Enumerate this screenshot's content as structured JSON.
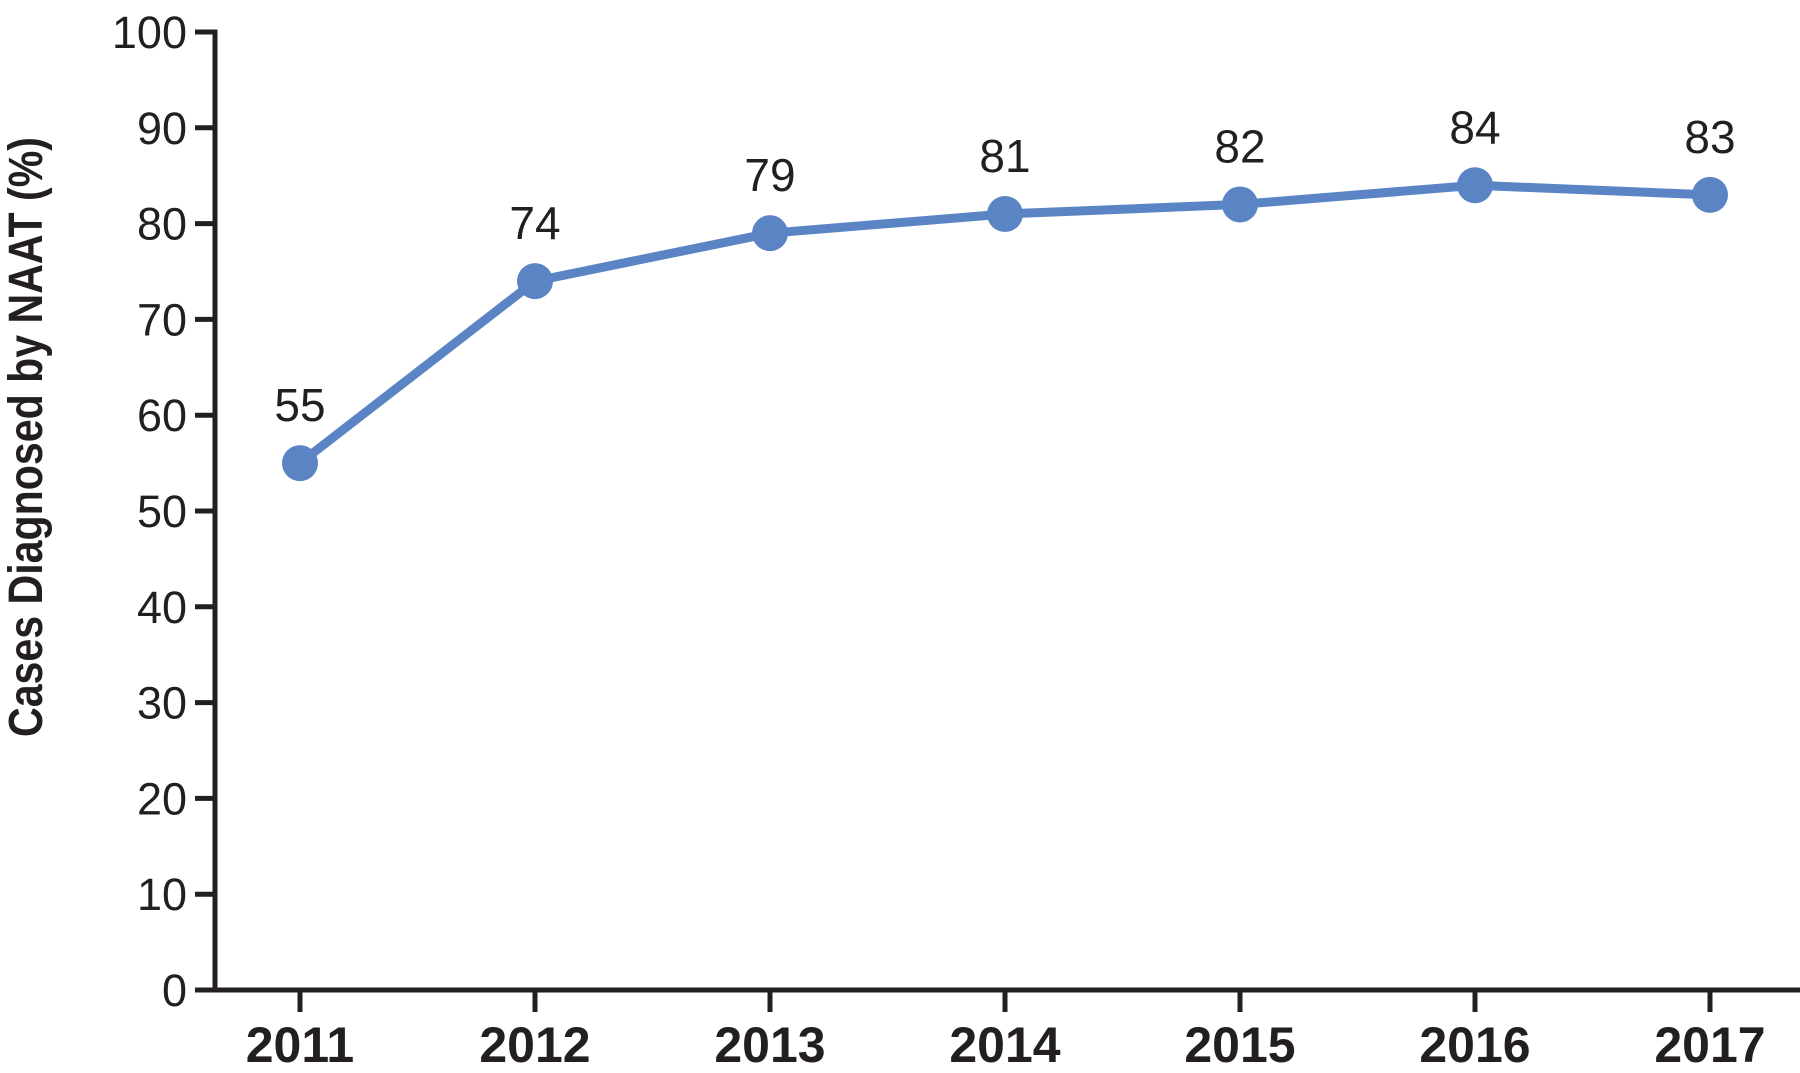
{
  "figure": {
    "background_color": "#ffffff"
  },
  "chart_data": {
    "type": "line",
    "title": "",
    "categories": [
      "2011",
      "2012",
      "2013",
      "2014",
      "2015",
      "2016",
      "2017"
    ],
    "values": [
      55,
      74,
      79,
      81,
      82,
      84,
      83
    ],
    "data_labels": [
      "55",
      "74",
      "79",
      "81",
      "82",
      "84",
      "83"
    ],
    "xlabel": "",
    "ylabel": "Cases Diagnosed by NAAT (%)",
    "ylim": [
      0,
      100
    ],
    "ytick_step": 10,
    "ytick_labels": [
      "0",
      "10",
      "20",
      "30",
      "40",
      "50",
      "60",
      "70",
      "80",
      "90",
      "100"
    ],
    "grid": false,
    "legend": "none",
    "colors": {
      "line": "#5b84c5",
      "marker": "#5b84c5",
      "axis": "#231f20",
      "text": "#231f20"
    }
  }
}
